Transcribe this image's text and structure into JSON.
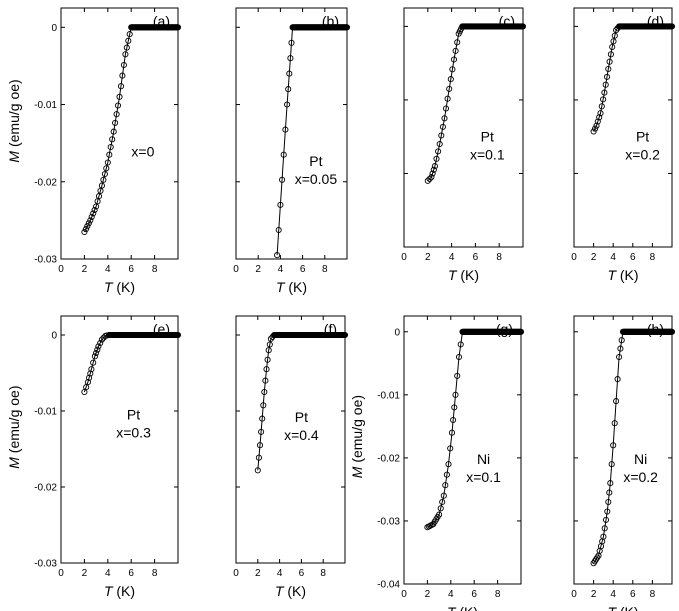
{
  "figure": {
    "xlabel": "T (K)",
    "ylabel": "M (emu/g oe)"
  },
  "chart_data": [
    {
      "type": "scatter",
      "panel_label": "(a)",
      "annotation": [
        "x=0"
      ],
      "xlabel": "T (K)",
      "ylabel": "M (emu/g oe)",
      "xlim": [
        0,
        10
      ],
      "ylim": [
        -0.03,
        0.0025
      ],
      "xticks": [
        "0",
        "2",
        "4",
        "6",
        "8"
      ],
      "yticks": [
        "0",
        "-0.01",
        "-0.02",
        "-0.03"
      ],
      "show_ylabel": true,
      "show_yticks": true,
      "series": [
        {
          "x": [
            2.0,
            2.5,
            3.0,
            3.5,
            4.0,
            4.5,
            5.0,
            5.5,
            6.0,
            10.0
          ],
          "y": [
            -0.0265,
            -0.025,
            -0.0232,
            -0.0205,
            -0.0175,
            -0.0135,
            -0.009,
            -0.0035,
            0.0,
            0.0
          ]
        }
      ]
    },
    {
      "type": "scatter",
      "panel_label": "(b)",
      "annotation": [
        "Pt",
        "x=0.05"
      ],
      "xlabel": "T (K)",
      "ylabel": "",
      "xlim": [
        0,
        10
      ],
      "ylim": [
        -0.03,
        0.0025
      ],
      "xticks": [
        "0",
        "2",
        "4",
        "6",
        "8"
      ],
      "yticks": [],
      "show_ylabel": false,
      "show_yticks": false,
      "series": [
        {
          "x": [
            3.7,
            4.0,
            4.3,
            4.6,
            4.9,
            5.1,
            10.0
          ],
          "y": [
            -0.0295,
            -0.023,
            -0.0165,
            -0.01,
            -0.004,
            0.0,
            0.0
          ]
        }
      ]
    },
    {
      "type": "scatter",
      "panel_label": "(c)",
      "annotation": [
        "Pt",
        "x=0.1"
      ],
      "xlabel": "T (K)",
      "ylabel": "",
      "xlim": [
        0,
        10
      ],
      "ylim": [
        -0.03,
        0.0025
      ],
      "xticks": [
        "0",
        "2",
        "4",
        "6",
        "8"
      ],
      "yticks": [],
      "show_ylabel": false,
      "show_yticks": false,
      "series": [
        {
          "x": [
            2.0,
            2.3,
            2.6,
            3.0,
            3.4,
            3.8,
            4.2,
            4.6,
            4.9,
            10.0
          ],
          "y": [
            -0.021,
            -0.0205,
            -0.019,
            -0.016,
            -0.0125,
            -0.0085,
            -0.0045,
            -0.001,
            0.0,
            0.0
          ]
        }
      ]
    },
    {
      "type": "scatter",
      "panel_label": "(d)",
      "annotation": [
        "Pt",
        "x=0.2"
      ],
      "xlabel": "T (K)",
      "ylabel": "",
      "xlim": [
        0,
        10
      ],
      "ylim": [
        -0.03,
        0.0025
      ],
      "xticks": [
        "0",
        "2",
        "4",
        "6",
        "8"
      ],
      "yticks": [],
      "show_ylabel": false,
      "show_yticks": false,
      "series": [
        {
          "x": [
            2.0,
            2.3,
            2.7,
            3.1,
            3.5,
            3.9,
            4.3,
            4.6,
            10.0
          ],
          "y": [
            -0.0143,
            -0.0135,
            -0.0118,
            -0.009,
            -0.0058,
            -0.0028,
            -0.0005,
            0.0,
            0.0
          ]
        }
      ]
    },
    {
      "type": "scatter",
      "panel_label": "(e)",
      "annotation": [
        "Pt",
        "x=0.3"
      ],
      "xlabel": "T (K)",
      "ylabel": "M (emu/g oe)",
      "xlim": [
        0,
        10
      ],
      "ylim": [
        -0.03,
        0.0025
      ],
      "xticks": [
        "0",
        "2",
        "4",
        "6",
        "8"
      ],
      "yticks": [
        "0",
        "-0.01",
        "-0.02",
        "-0.03"
      ],
      "show_ylabel": true,
      "show_yticks": true,
      "series": [
        {
          "x": [
            2.0,
            2.3,
            2.6,
            2.9,
            3.2,
            3.5,
            3.8,
            4.1,
            10.0
          ],
          "y": [
            -0.0075,
            -0.0062,
            -0.0045,
            -0.0028,
            -0.0015,
            -0.0006,
            -0.0001,
            0.0,
            0.0
          ]
        }
      ]
    },
    {
      "type": "scatter",
      "panel_label": "(f)",
      "annotation": [
        "Pt",
        "x=0.4"
      ],
      "xlabel": "T (K)",
      "ylabel": "",
      "xlim": [
        0,
        10
      ],
      "ylim": [
        -0.03,
        0.0025
      ],
      "xticks": [
        "0",
        "2",
        "4",
        "6",
        "8"
      ],
      "yticks": [],
      "show_ylabel": false,
      "show_yticks": false,
      "series": [
        {
          "x": [
            2.0,
            2.2,
            2.4,
            2.6,
            2.8,
            3.0,
            3.2,
            3.5,
            10.0
          ],
          "y": [
            -0.0178,
            -0.0145,
            -0.011,
            -0.0075,
            -0.0045,
            -0.002,
            -0.0005,
            0.0,
            0.0
          ]
        }
      ]
    },
    {
      "type": "scatter",
      "panel_label": "(g)",
      "annotation": [
        "Ni",
        "x=0.1"
      ],
      "xlabel": "T (K)",
      "ylabel": "M (emu/g oe)",
      "xlim": [
        0,
        10
      ],
      "ylim": [
        -0.04,
        0.0025
      ],
      "xticks": [
        "0",
        "2",
        "4",
        "6",
        "8"
      ],
      "yticks": [
        "0",
        "-0.01",
        "-0.02",
        "-0.03",
        "-0.04"
      ],
      "show_ylabel": true,
      "show_yticks": true,
      "series": [
        {
          "x": [
            2.0,
            2.5,
            3.0,
            3.4,
            3.8,
            4.1,
            4.4,
            4.7,
            5.0,
            10.0
          ],
          "y": [
            -0.031,
            -0.0305,
            -0.029,
            -0.026,
            -0.021,
            -0.016,
            -0.01,
            -0.004,
            0.0,
            0.0
          ]
        }
      ]
    },
    {
      "type": "scatter",
      "panel_label": "(h)",
      "annotation": [
        "Ni",
        "x=0.2"
      ],
      "xlabel": "T (K)",
      "ylabel": "",
      "xlim": [
        0,
        10
      ],
      "ylim": [
        -0.04,
        0.0025
      ],
      "xticks": [
        "0",
        "2",
        "4",
        "6",
        "8"
      ],
      "yticks": [],
      "show_ylabel": false,
      "show_yticks": false,
      "series": [
        {
          "x": [
            2.0,
            2.5,
            3.0,
            3.4,
            3.7,
            4.0,
            4.3,
            4.6,
            5.0,
            10.0
          ],
          "y": [
            -0.0367,
            -0.0355,
            -0.0325,
            -0.0285,
            -0.024,
            -0.018,
            -0.011,
            -0.004,
            0.0,
            0.0
          ]
        }
      ]
    }
  ]
}
